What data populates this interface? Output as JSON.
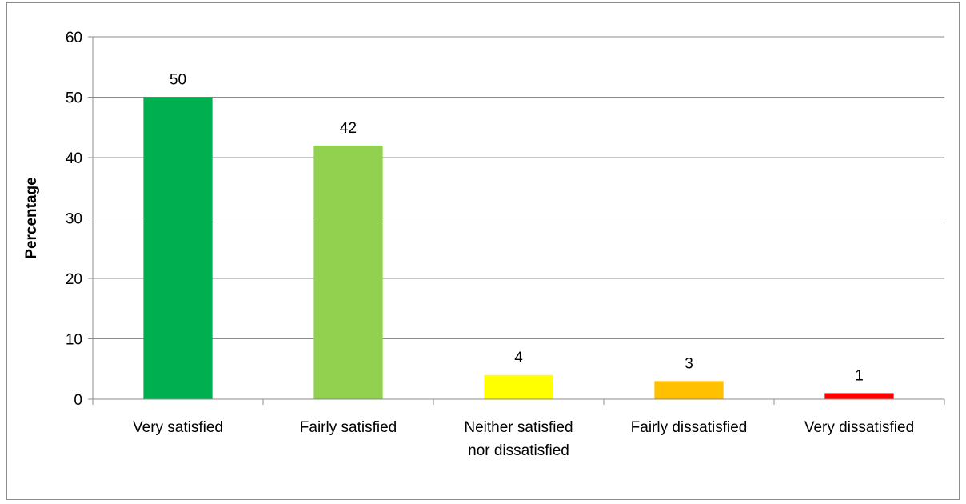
{
  "chart_data": {
    "type": "bar",
    "title": "",
    "xlabel": "",
    "ylabel": "Percentage",
    "categories": [
      [
        "Very satisfied"
      ],
      [
        "Fairly satisfied"
      ],
      [
        "Neither satisfied",
        "nor dissatisfied"
      ],
      [
        "Fairly dissatisfied"
      ],
      [
        "Very dissatisfied"
      ]
    ],
    "values": [
      50,
      42,
      4,
      3,
      1
    ],
    "colors": [
      "#00b050",
      "#92d050",
      "#ffff00",
      "#ffc000",
      "#ff0000"
    ],
    "ylim": [
      0,
      60
    ],
    "yticks": [
      0,
      10,
      20,
      30,
      40,
      50,
      60
    ],
    "grid": true,
    "legend": "none",
    "data_labels": true
  }
}
